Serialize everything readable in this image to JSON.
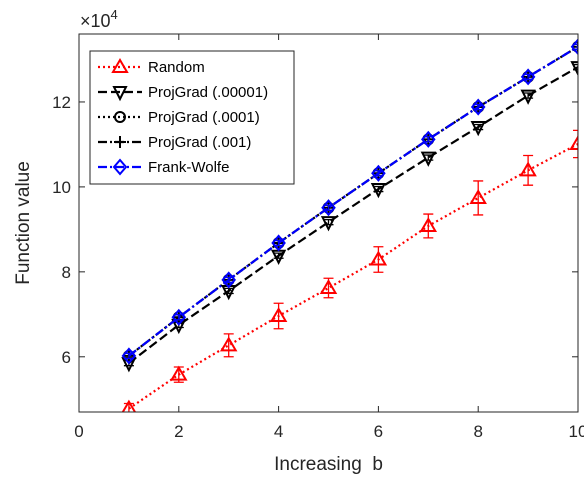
{
  "chart_data": {
    "type": "line",
    "xlabel": "Increasing  b",
    "ylabel": "Function value",
    "exponent_label": {
      "base": "×10",
      "power": "4"
    },
    "xlim": [
      0,
      10
    ],
    "ylim": [
      4.7,
      13.6
    ],
    "xticks": [
      0,
      2,
      4,
      6,
      8,
      10
    ],
    "yticks": [
      6,
      8,
      10,
      12
    ],
    "grid": false,
    "legend_position": "top-left",
    "x": [
      1,
      2,
      3,
      4,
      5,
      6,
      7,
      8,
      9,
      10
    ],
    "series": [
      {
        "name": "Random",
        "color": "#ff0000",
        "marker": "triangle-up",
        "line_style": "dotted",
        "values": [
          4.78,
          5.58,
          6.27,
          6.96,
          7.62,
          8.29,
          9.08,
          9.74,
          10.39,
          11.01
        ],
        "errors": [
          0.12,
          0.18,
          0.27,
          0.3,
          0.23,
          0.3,
          0.28,
          0.4,
          0.35,
          0.32
        ]
      },
      {
        "name": "ProjGrad (.00001)",
        "color": "#000000",
        "marker": "triangle-down",
        "line_style": "dashed",
        "values": [
          5.85,
          6.75,
          7.55,
          8.38,
          9.17,
          9.95,
          10.69,
          11.41,
          12.15,
          12.82
        ],
        "errors": [
          0.06,
          0.06,
          0.06,
          0.06,
          0.06,
          0.06,
          0.06,
          0.06,
          0.06,
          0.06
        ]
      },
      {
        "name": "ProjGrad (.0001)",
        "color": "#000000",
        "marker": "circle",
        "line_style": "dotted",
        "values": [
          6.02,
          6.93,
          7.81,
          8.68,
          9.51,
          10.32,
          11.12,
          11.88,
          12.59,
          13.3
        ],
        "errors": [
          0.06,
          0.06,
          0.06,
          0.06,
          0.06,
          0.06,
          0.06,
          0.06,
          0.06,
          0.06
        ]
      },
      {
        "name": "ProjGrad (.001)",
        "color": "#000000",
        "marker": "plus",
        "line_style": "dash-dot",
        "values": [
          6.02,
          6.93,
          7.81,
          8.68,
          9.51,
          10.32,
          11.12,
          11.88,
          12.59,
          13.3
        ],
        "errors": [
          0.06,
          0.06,
          0.06,
          0.06,
          0.06,
          0.06,
          0.06,
          0.06,
          0.06,
          0.06
        ]
      },
      {
        "name": "Frank-Wolfe",
        "color": "#0000ff",
        "marker": "diamond",
        "line_style": "dash-dot",
        "values": [
          6.02,
          6.93,
          7.81,
          8.68,
          9.51,
          10.32,
          11.12,
          11.88,
          12.59,
          13.3
        ],
        "errors": [
          0.06,
          0.06,
          0.06,
          0.06,
          0.06,
          0.06,
          0.06,
          0.06,
          0.06,
          0.06
        ]
      }
    ]
  }
}
